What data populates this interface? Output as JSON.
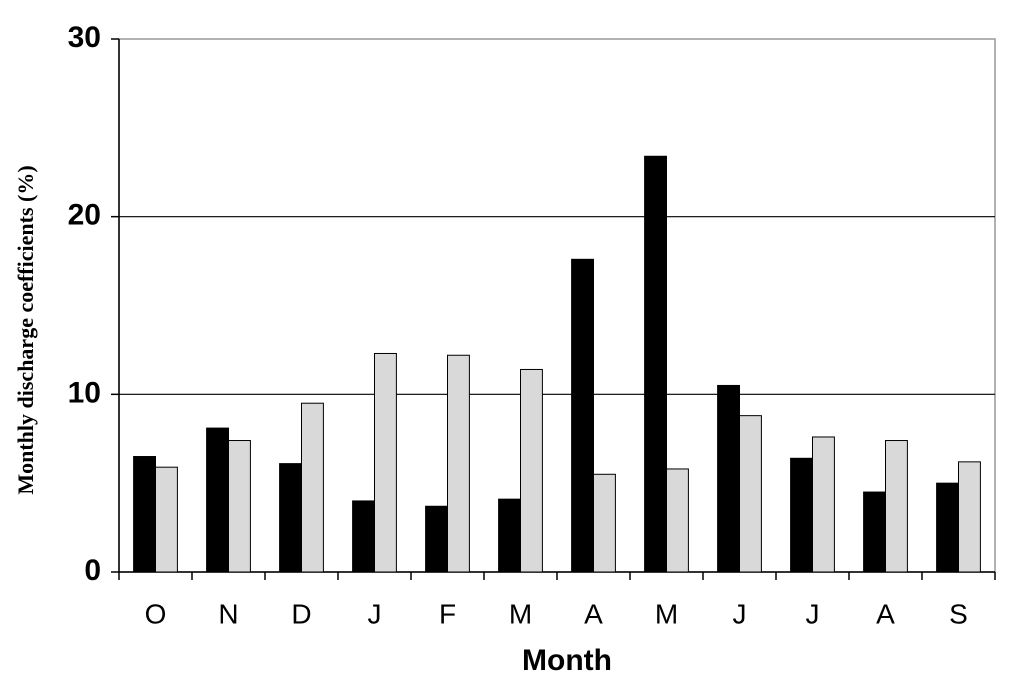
{
  "chart_data": {
    "type": "bar",
    "xlabel": "Month",
    "ylabel": "Monthly discharge coefficients (%)",
    "categories": [
      "O",
      "N",
      "D",
      "J",
      "F",
      "M",
      "A",
      "M",
      "J",
      "J",
      "A",
      "S"
    ],
    "series": [
      {
        "color": "#000000",
        "values": [
          6.5,
          8.1,
          6.1,
          4.0,
          3.7,
          4.1,
          17.6,
          23.4,
          10.5,
          6.4,
          4.5,
          5.0
        ]
      },
      {
        "color": "#d9d9d9",
        "values": [
          5.9,
          7.4,
          9.5,
          12.3,
          12.2,
          11.4,
          5.5,
          5.8,
          8.8,
          7.6,
          7.4,
          6.2
        ]
      }
    ],
    "ylim": [
      0,
      30
    ],
    "yticks": [
      0,
      10,
      20,
      30
    ],
    "grid": true
  }
}
